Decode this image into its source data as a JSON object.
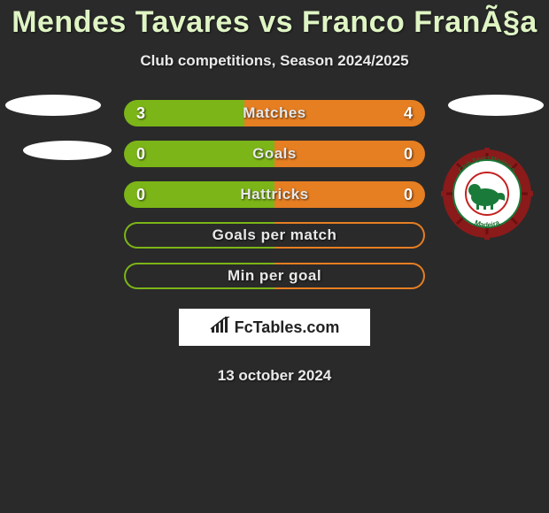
{
  "title": "Mendes Tavares vs Franco FranÃ§a",
  "subtitle": "Club competitions, Season 2024/2025",
  "date": "13 october 2024",
  "brand": "FcTables.com",
  "colors": {
    "player1_fill": "#7cb518",
    "player2_fill": "#e67e22",
    "player1_border": "#7cb518",
    "player2_border": "#e67e22",
    "background": "#2a2a2a",
    "title_color": "#dff5c4",
    "text_color": "#eaeaea"
  },
  "club_logo": {
    "outer_color": "#8b1a1a",
    "inner_bg": "#ffffff",
    "accent": "#1a7a3a",
    "top_text": "Club Sport Marítimo",
    "bottom_text": "Madeira"
  },
  "stats": [
    {
      "label": "Matches",
      "left_val": "3",
      "right_val": "4",
      "left_pct": 40,
      "type": "filled"
    },
    {
      "label": "Goals",
      "left_val": "0",
      "right_val": "0",
      "left_pct": 50,
      "type": "filled"
    },
    {
      "label": "Hattricks",
      "left_val": "0",
      "right_val": "0",
      "left_pct": 50,
      "type": "filled"
    },
    {
      "label": "Goals per match",
      "left_val": "",
      "right_val": "",
      "left_pct": 50,
      "type": "border"
    },
    {
      "label": "Min per goal",
      "left_val": "",
      "right_val": "",
      "left_pct": 50,
      "type": "border"
    }
  ]
}
